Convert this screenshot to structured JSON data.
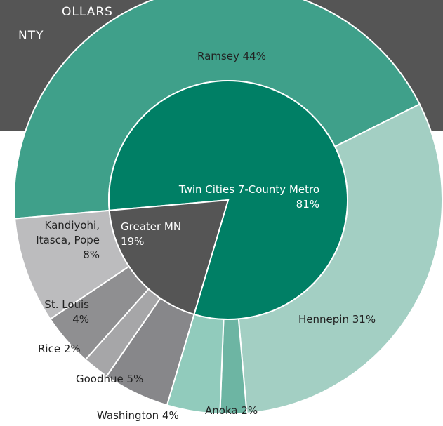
{
  "chart_data": {
    "type": "sunburst",
    "title_lines": [
      "OLLARS",
      "NTY"
    ],
    "inner": {
      "categories": [
        "Twin Cities 7-County Metro",
        "Greater MN"
      ],
      "values": [
        81,
        19
      ],
      "value_labels": [
        "81%",
        "19%"
      ],
      "colors": [
        "#007f65",
        "#555555"
      ]
    },
    "outer": {
      "categories": [
        "Ramsey",
        "Hennepin",
        "Anoka",
        "Washington",
        "Goodhue",
        "Rice",
        "St. Louis",
        "Kandiyohi, Itasca, Pope"
      ],
      "values": [
        44,
        31,
        2,
        4,
        5,
        2,
        4,
        8
      ],
      "value_labels": [
        "44%",
        "31%",
        "2%",
        "4%",
        "5%",
        "2%",
        "4%",
        "8%"
      ],
      "colors": [
        "#3fa08a",
        "#a3cfc3",
        "#6db5a3",
        "#91cbbc",
        "#87878a",
        "#a6a6a8",
        "#8f8f91",
        "#bcbcbe"
      ]
    }
  }
}
